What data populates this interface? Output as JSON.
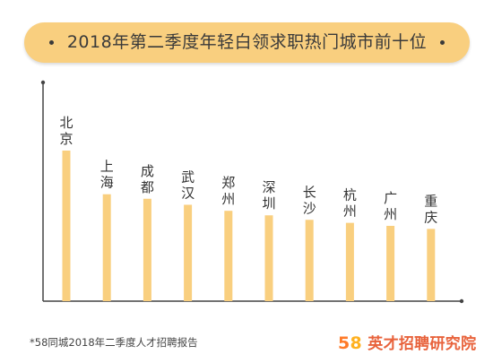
{
  "title": "2018年第二季度年轻白领求职热门城市前十位",
  "footnote": "*58同城2018年二季度人才招聘报告",
  "brand": {
    "logo_5": "5",
    "logo_8": "8",
    "name": "英才招聘研究院"
  },
  "colors": {
    "bar": "#f9cf7f",
    "axis": "#444444",
    "pill": "#f9cf7f"
  },
  "chart_data": {
    "type": "bar",
    "title": "2018年第二季度年轻白领求职热门城市前十位",
    "categories": [
      "北京",
      "上海",
      "成都",
      "武汉",
      "郑州",
      "深圳",
      "长沙",
      "杭州",
      "广州",
      "重庆"
    ],
    "values": [
      100,
      71,
      68,
      64,
      60,
      57,
      54,
      52,
      50,
      48
    ],
    "ylim": [
      0,
      100
    ],
    "grid": false,
    "xlabel": "",
    "ylabel": ""
  }
}
